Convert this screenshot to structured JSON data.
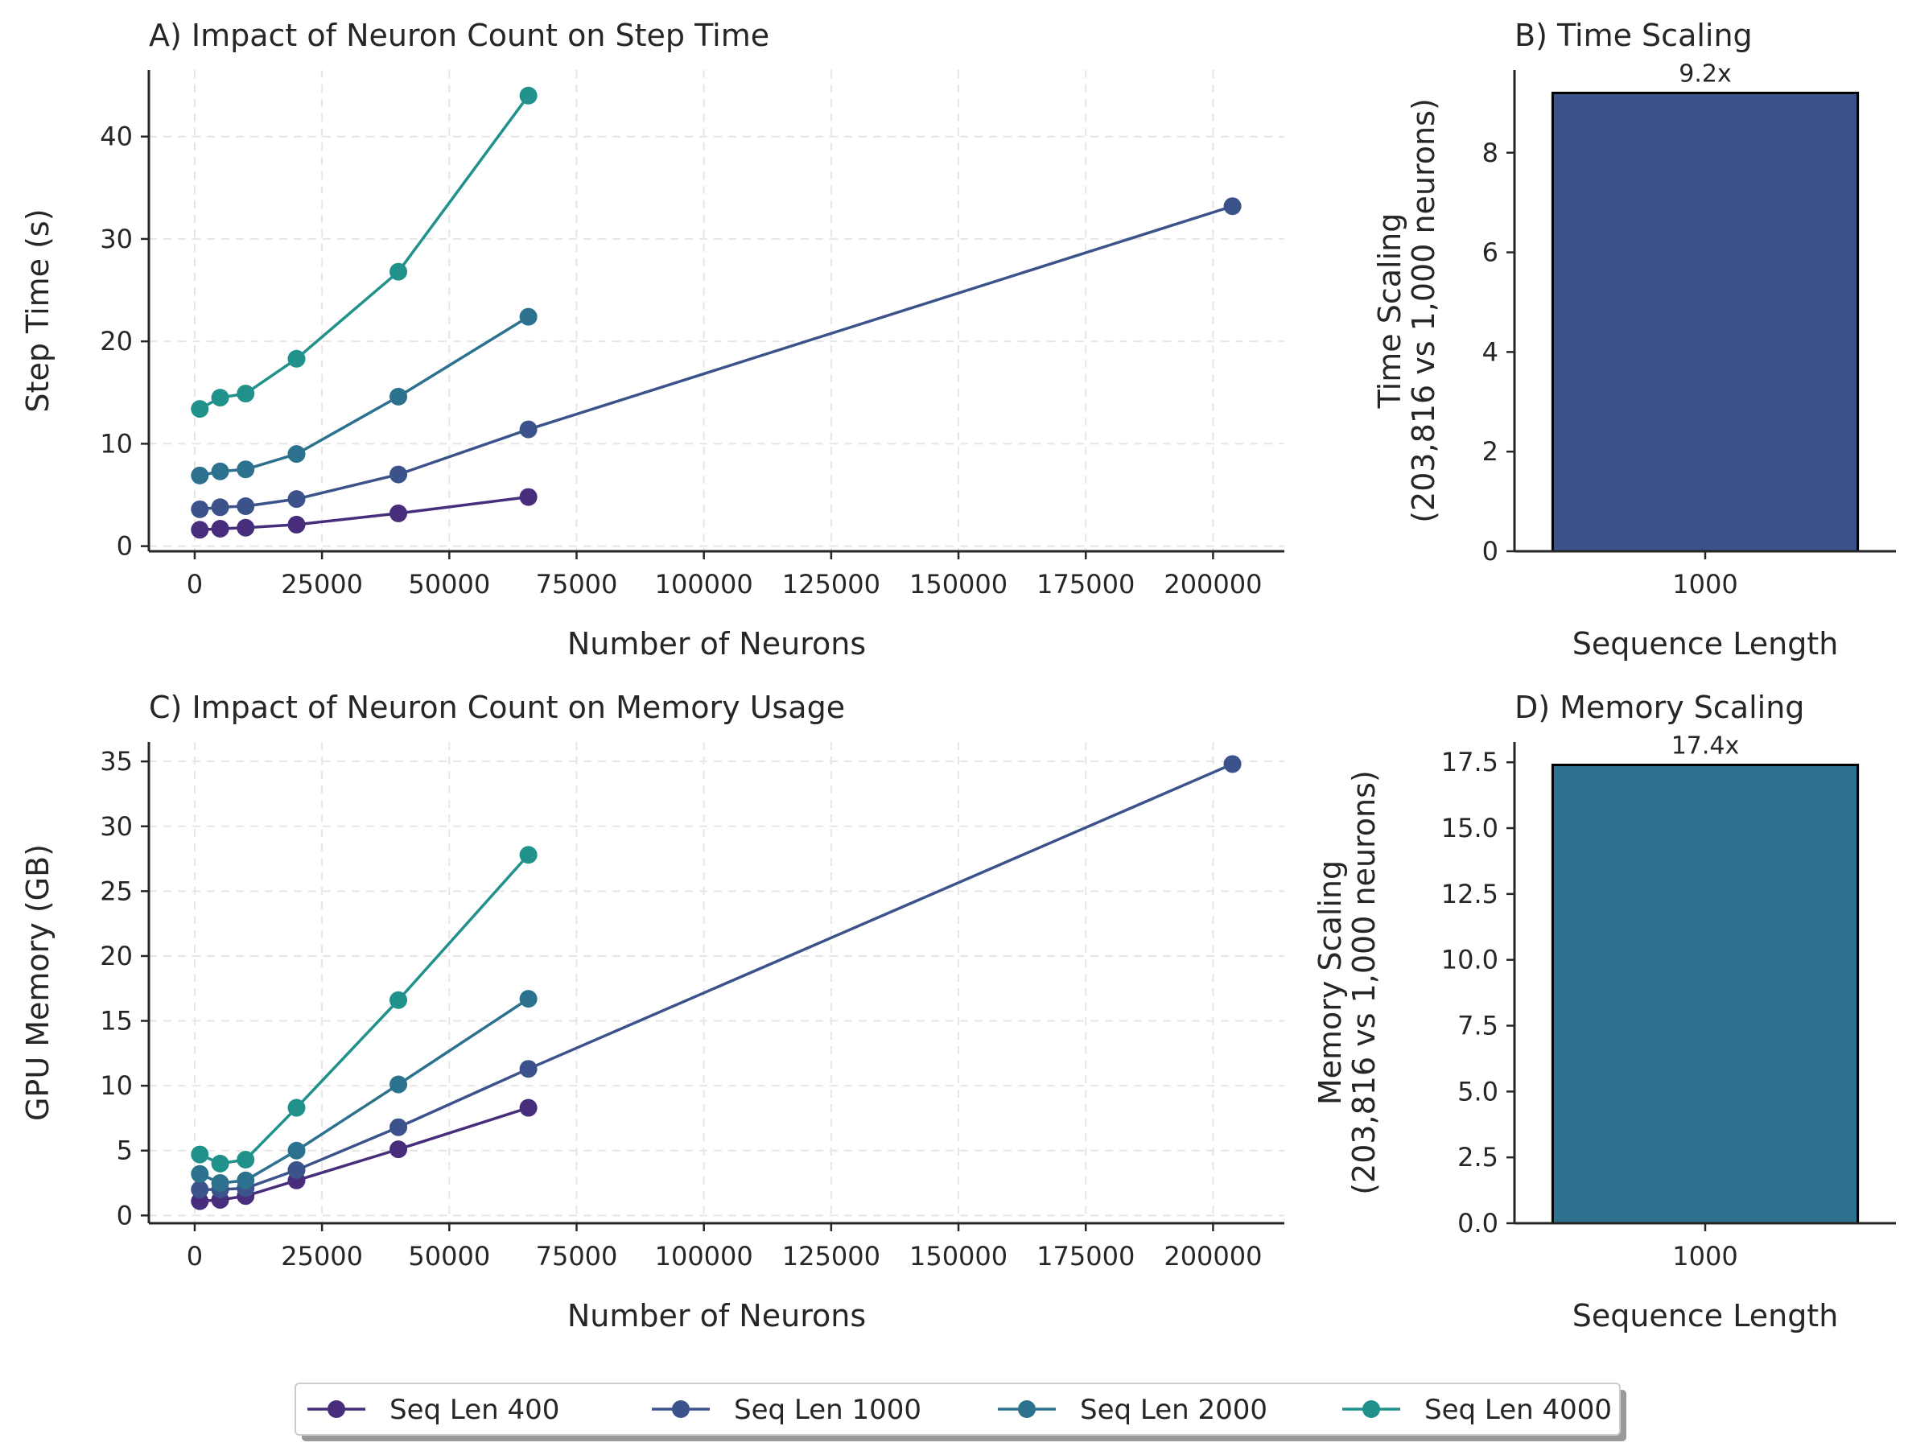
{
  "chart_data": [
    {
      "id": "A",
      "type": "line",
      "title": "A) Impact of Neuron Count on Step Time",
      "xlabel": "Number of Neurons",
      "ylabel": "Step Time (s)",
      "xlim": [
        -9000,
        214000
      ],
      "ylim": [
        -0.5,
        46.5
      ],
      "xticks": [
        0,
        25000,
        50000,
        75000,
        100000,
        125000,
        150000,
        175000,
        200000
      ],
      "yticks": [
        0,
        10,
        20,
        30,
        40
      ],
      "grid": true,
      "series": [
        {
          "name": "Seq Len 400",
          "color": "#472d7b",
          "x": [
            1000,
            5000,
            10000,
            20000,
            40000,
            65536
          ],
          "y": [
            1.6,
            1.7,
            1.8,
            2.1,
            3.2,
            4.8
          ]
        },
        {
          "name": "Seq Len 1000",
          "color": "#3b528b",
          "x": [
            1000,
            5000,
            10000,
            20000,
            40000,
            65536,
            203816
          ],
          "y": [
            3.6,
            3.8,
            3.9,
            4.6,
            7.0,
            11.4,
            33.2
          ]
        },
        {
          "name": "Seq Len 2000",
          "color": "#2c728e",
          "x": [
            1000,
            5000,
            10000,
            20000,
            40000,
            65536
          ],
          "y": [
            6.9,
            7.3,
            7.5,
            9.0,
            14.6,
            22.4
          ]
        },
        {
          "name": "Seq Len 4000",
          "color": "#21918c",
          "x": [
            1000,
            5000,
            10000,
            20000,
            40000,
            65536
          ],
          "y": [
            13.4,
            14.5,
            14.9,
            18.3,
            26.8,
            44.0
          ]
        }
      ]
    },
    {
      "id": "B",
      "type": "bar",
      "title": "B) Time Scaling",
      "xlabel": "Sequence Length",
      "ylabel": [
        "Time Scaling",
        "(203,816 vs 1,000 neurons)"
      ],
      "categories": [
        "1000"
      ],
      "values": [
        9.2
      ],
      "value_labels": [
        "9.2x"
      ],
      "colors": [
        "#3b528b"
      ],
      "ylim": [
        0,
        9.66
      ],
      "yticks": [
        0,
        2,
        4,
        6,
        8
      ],
      "ytick_labels": [
        "0",
        "2",
        "4",
        "6",
        "8"
      ],
      "grid": false
    },
    {
      "id": "C",
      "type": "line",
      "title": "C) Impact of Neuron Count on Memory Usage",
      "xlabel": "Number of Neurons",
      "ylabel": "GPU Memory (GB)",
      "xlim": [
        -9000,
        214000
      ],
      "ylim": [
        -0.6,
        36.5
      ],
      "xticks": [
        0,
        25000,
        50000,
        75000,
        100000,
        125000,
        150000,
        175000,
        200000
      ],
      "yticks": [
        0,
        5,
        10,
        15,
        20,
        25,
        30,
        35
      ],
      "grid": true,
      "series": [
        {
          "name": "Seq Len 400",
          "color": "#472d7b",
          "x": [
            1000,
            5000,
            10000,
            20000,
            40000,
            65536
          ],
          "y": [
            1.1,
            1.2,
            1.5,
            2.7,
            5.1,
            8.3
          ]
        },
        {
          "name": "Seq Len 1000",
          "color": "#3b528b",
          "x": [
            1000,
            5000,
            10000,
            20000,
            40000,
            65536,
            203816
          ],
          "y": [
            2.0,
            2.0,
            2.1,
            3.5,
            6.8,
            11.3,
            34.8
          ]
        },
        {
          "name": "Seq Len 2000",
          "color": "#2c728e",
          "x": [
            1000,
            5000,
            10000,
            20000,
            40000,
            65536
          ],
          "y": [
            3.2,
            2.5,
            2.7,
            5.0,
            10.1,
            16.7
          ]
        },
        {
          "name": "Seq Len 4000",
          "color": "#21918c",
          "x": [
            1000,
            5000,
            10000,
            20000,
            40000,
            65536
          ],
          "y": [
            4.7,
            4.0,
            4.3,
            8.3,
            16.6,
            27.8
          ]
        }
      ]
    },
    {
      "id": "D",
      "type": "bar",
      "title": "D) Memory Scaling",
      "xlabel": "Sequence Length",
      "ylabel": [
        "Memory Scaling",
        "(203,816 vs 1,000 neurons)"
      ],
      "categories": [
        "1000"
      ],
      "values": [
        17.4
      ],
      "value_labels": [
        "17.4x"
      ],
      "colors": [
        "#2c728e"
      ],
      "ylim": [
        0,
        18.27
      ],
      "yticks": [
        0,
        2.5,
        5,
        7.5,
        10,
        12.5,
        15,
        17.5
      ],
      "ytick_labels": [
        "0.0",
        "2.5",
        "5.0",
        "7.5",
        "10.0",
        "12.5",
        "15.0",
        "17.5"
      ],
      "grid": false
    }
  ],
  "legend": {
    "placement": "bottom-center",
    "entries": [
      {
        "label": "Seq Len 400",
        "color": "#472d7b"
      },
      {
        "label": "Seq Len 1000",
        "color": "#3b528b"
      },
      {
        "label": "Seq Len 2000",
        "color": "#2c728e"
      },
      {
        "label": "Seq Len 4000",
        "color": "#21918c"
      }
    ]
  }
}
